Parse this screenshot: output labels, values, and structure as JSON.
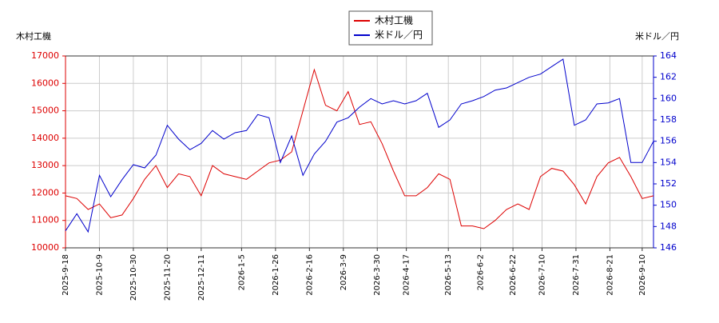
{
  "chart_data": {
    "type": "line",
    "y_label": "木村工機",
    "y2_label": "米ドル／円",
    "x": [
      "2025-9-18",
      "2025-9-25",
      "2025-10-2",
      "2025-10-9",
      "2025-10-16",
      "2025-10-23",
      "2025-10-30",
      "2025-11-6",
      "2025-11-13",
      "2025-11-20",
      "2025-11-27",
      "2025-12-4",
      "2025-12-11",
      "2025-12-18",
      "2025-12-25",
      "2026-1-1",
      "2026-1-8",
      "2026-1-15",
      "2026-1-22",
      "2026-1-29",
      "2026-2-5",
      "2026-2-12",
      "2026-2-19",
      "2026-2-26",
      "2026-3-5",
      "2026-3-12",
      "2026-3-19",
      "2026-3-26",
      "2026-4-2",
      "2026-4-9",
      "2026-4-16",
      "2026-4-23",
      "2026-4-30",
      "2026-5-7",
      "2026-5-14",
      "2026-5-21",
      "2026-5-28",
      "2026-6-4",
      "2026-6-11",
      "2026-6-18",
      "2026-6-25",
      "2026-7-2",
      "2026-7-9",
      "2026-7-16",
      "2026-7-23",
      "2026-7-30",
      "2026-8-6",
      "2026-8-13",
      "2026-8-20",
      "2026-8-27",
      "2026-9-3",
      "2026-9-10",
      "2026-9-17"
    ],
    "series": [
      {
        "name": "木村工機",
        "color": "#dd0000",
        "axis": "y",
        "values": [
          11900,
          11800,
          11400,
          11600,
          11100,
          11200,
          11800,
          12500,
          13000,
          12200,
          12700,
          12600,
          11900,
          13000,
          12700,
          12600,
          12500,
          12800,
          13100,
          13200,
          13500,
          15000,
          16500,
          15200,
          15000,
          15700,
          14500,
          14600,
          13800,
          12800,
          11900,
          11900,
          12200,
          12700,
          12500,
          10800,
          10800,
          10700,
          11000,
          11400,
          11600,
          11400,
          12600,
          12900,
          12800,
          12300,
          11600,
          12600,
          13100,
          13300,
          12600,
          11800,
          11900
        ]
      },
      {
        "name": "米ドル／円",
        "color": "#0000cc",
        "axis": "y2",
        "values": [
          147.6,
          149.2,
          147.5,
          152.8,
          150.8,
          152.4,
          153.8,
          153.5,
          154.7,
          157.5,
          156.2,
          155.2,
          155.8,
          157.0,
          156.2,
          156.8,
          157.0,
          158.5,
          158.2,
          154.0,
          156.5,
          152.8,
          154.8,
          156.0,
          157.8,
          158.2,
          159.2,
          160.0,
          159.5,
          159.8,
          159.5,
          159.8,
          160.5,
          157.3,
          158.0,
          159.5,
          159.8,
          160.2,
          160.8,
          161.0,
          161.5,
          162.0,
          162.3,
          163.0,
          163.7,
          157.5,
          158.0,
          159.5,
          159.6,
          160.0,
          154.0,
          154.0,
          156.0
        ]
      }
    ],
    "xlim": [
      "2025-9-18",
      "2026-9-17"
    ],
    "xticks": [
      "2025-9-18",
      "2025-10-9",
      "2025-10-30",
      "2025-11-20",
      "2025-12-11",
      "2026-1-5",
      "2026-1-26",
      "2026-2-16",
      "2026-3-9",
      "2026-3-30",
      "2026-4-17",
      "2026-5-13",
      "2026-6-2",
      "2026-6-22",
      "2026-7-10",
      "2026-7-31",
      "2026-8-21",
      "2026-9-10"
    ],
    "ylim": [
      10000,
      17000
    ],
    "yticks": [
      10000,
      11000,
      12000,
      13000,
      14000,
      15000,
      16000,
      17000
    ],
    "y2lim": [
      146,
      164
    ],
    "y2ticks": [
      146,
      148,
      150,
      152,
      154,
      156,
      158,
      160,
      162,
      164
    ],
    "grid": true,
    "legend": "top"
  }
}
